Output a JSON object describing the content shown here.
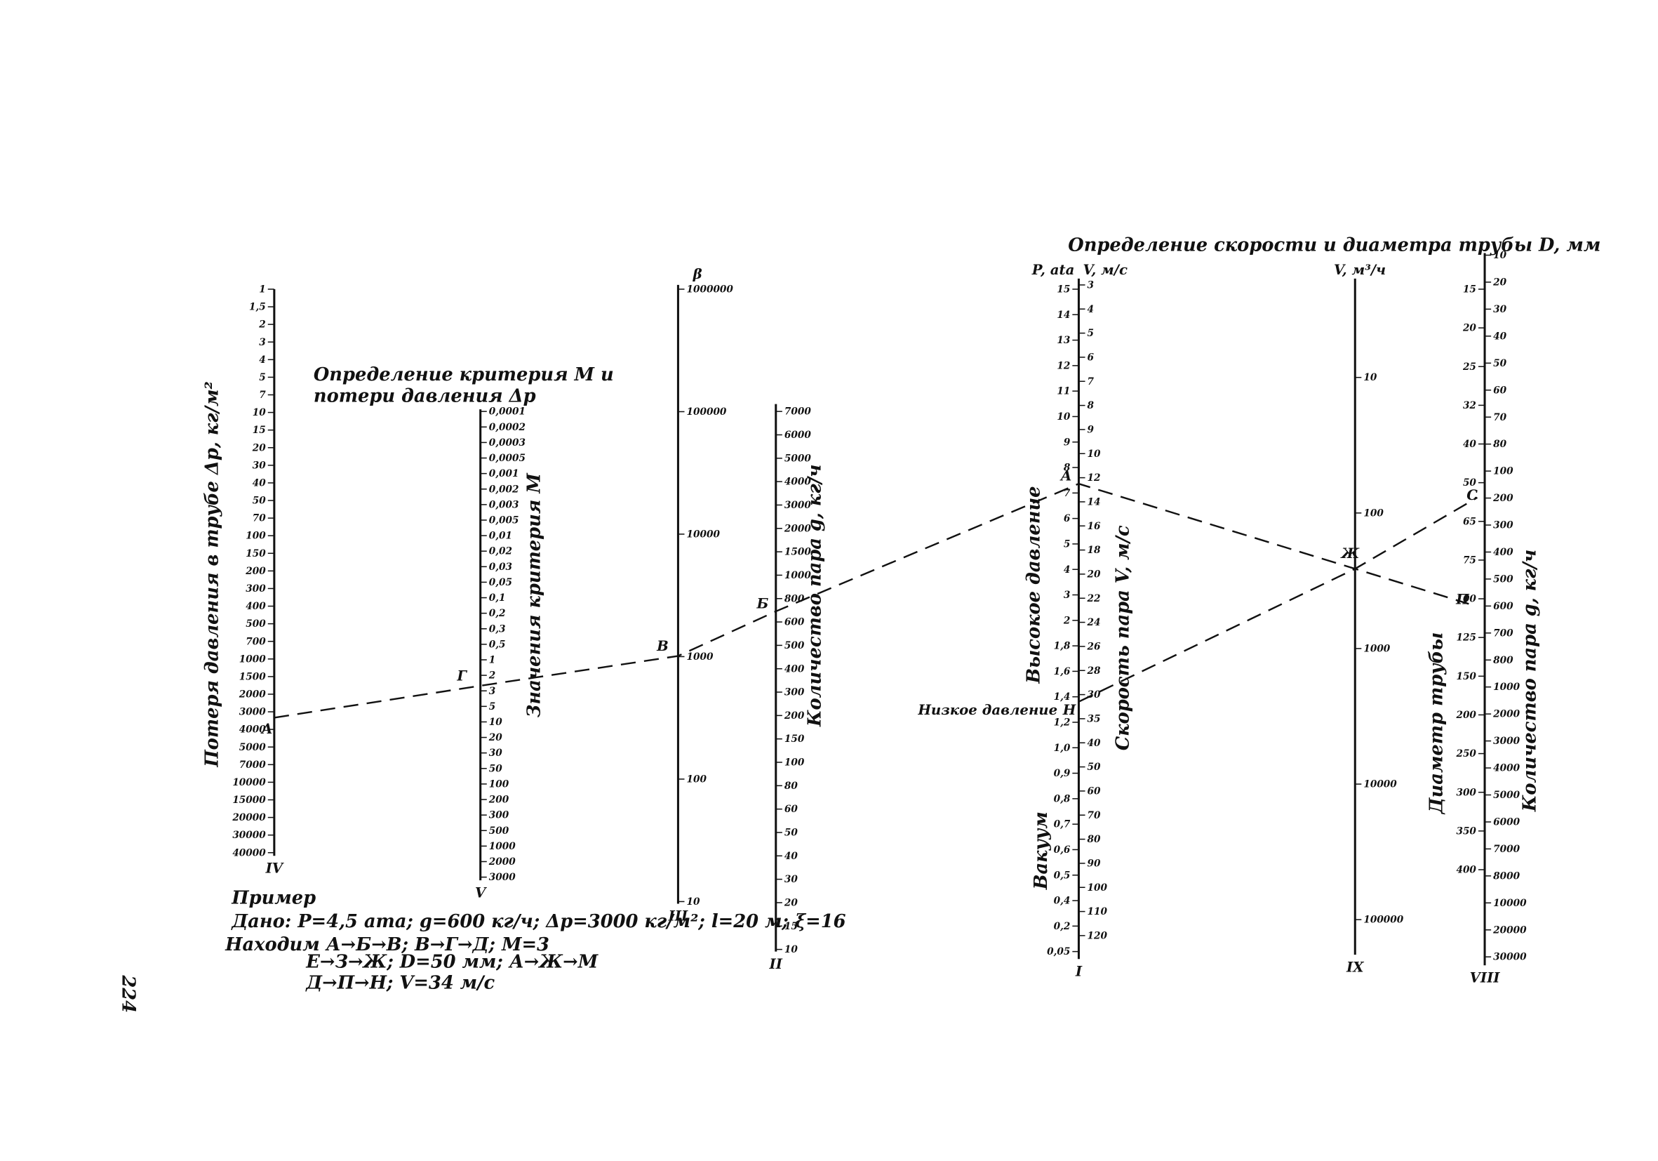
{
  "page_number": "224",
  "left_title": [
    "Определение критерия M и",
    "потери давления Δp"
  ],
  "right_title": "Определение скорости и диаметра трубы D, мм",
  "axes": [
    {
      "numeral": "IV",
      "label": "Потеря давления в трубе Δp, кг/м²",
      "ticks": [
        "1",
        "1,5",
        "2",
        "3",
        "4",
        "5",
        "7",
        "10",
        "15",
        "20",
        "30",
        "40",
        "50",
        "70",
        "100",
        "150",
        "200",
        "300",
        "400",
        "500",
        "700",
        "1000",
        "1500",
        "2000",
        "3000",
        "4000",
        "5000",
        "7000",
        "10000",
        "15000",
        "20000",
        "30000",
        "40000"
      ]
    },
    {
      "numeral": "V",
      "label": "Значения критерия M",
      "ticks": [
        "0,0001",
        "0,0002",
        "0,0003",
        "0,0005",
        "0,001",
        "0,002",
        "0,003",
        "0,005",
        "0,01",
        "0,02",
        "0,03",
        "0,05",
        "0,1",
        "0,2",
        "0,3",
        "0,5",
        "1",
        "2",
        "3",
        "5",
        "10",
        "20",
        "30",
        "50",
        "100",
        "200",
        "300",
        "500",
        "1000",
        "2000",
        "3000"
      ]
    },
    {
      "numeral": "III",
      "top": "β",
      "ticks": [
        "1000000",
        "100000",
        "10000",
        "1000",
        "100",
        "10"
      ]
    },
    {
      "numeral": "II",
      "label": "Количество пара g, кг/ч",
      "ticks": [
        "7000",
        "6000",
        "5000",
        "4000",
        "3000",
        "2000",
        "1500",
        "1000",
        "800",
        "600",
        "500",
        "400",
        "300",
        "200",
        "150",
        "100",
        "80",
        "60",
        "50",
        "40",
        "30",
        "20",
        "15",
        "10"
      ]
    },
    {
      "numeral": "I",
      "top_left": "P, ata",
      "top_right": "V, м/с",
      "labels": [
        "Высокое давление",
        "Вакуум",
        "Скорость пара V, м/с"
      ],
      "side_label": "Низкое давление",
      "ticks": [
        "15",
        "14",
        "13",
        "12",
        "11",
        "10",
        "9",
        "8",
        "7",
        "6",
        "5",
        "4",
        "3",
        "2",
        "1,8",
        "1,6",
        "1,4",
        "1,2",
        "1,0",
        "0,9",
        "0,8",
        "0,7",
        "0,6",
        "0,5",
        "0,4",
        "0,2",
        "0,05"
      ],
      "ticks_right": [
        "3",
        "4",
        "5",
        "6",
        "7",
        "8",
        "9",
        "10",
        "12",
        "14",
        "16",
        "18",
        "20",
        "22",
        "24",
        "26",
        "28",
        "30",
        "35",
        "40",
        "50",
        "60",
        "70",
        "80",
        "90",
        "100",
        "110",
        "120"
      ]
    },
    {
      "numeral": "IX",
      "top": "V, м³/ч",
      "ticks": [
        "10",
        "100",
        "1000",
        "10000",
        "100000"
      ]
    },
    {
      "numeral": "VIII",
      "labels": [
        "Диаметр трубы",
        "Количество пара g, кг/ч"
      ],
      "ticks": [
        "15",
        "20",
        "25",
        "32",
        "40",
        "50",
        "65",
        "75",
        "100",
        "125",
        "150",
        "200",
        "250",
        "300",
        "350",
        "400"
      ],
      "ticks_right": [
        "10",
        "20",
        "30",
        "40",
        "50",
        "60",
        "70",
        "80",
        "100",
        "200",
        "300",
        "400",
        "500",
        "600",
        "700",
        "800",
        "1000",
        "2000",
        "3000",
        "4000",
        "5000",
        "6000",
        "7000",
        "8000",
        "10000",
        "20000",
        "30000"
      ]
    }
  ],
  "points": [
    "А",
    "Г",
    "В",
    "Б",
    "А",
    "Ж",
    "С",
    "П",
    "Н"
  ],
  "example": {
    "heading": "Пример",
    "lines": [
      "Дано: P=4,5 ата; g=600 кг/ч; Δp=3000 кг/м²; l=20 м; ξ=16",
      "Находим  А→Б→В;  В→Г→Д;  M=3",
      "Е→З→Ж;  D=50 мм;  А→Ж→М",
      "Д→П→Н;  V=34 м/с"
    ]
  }
}
